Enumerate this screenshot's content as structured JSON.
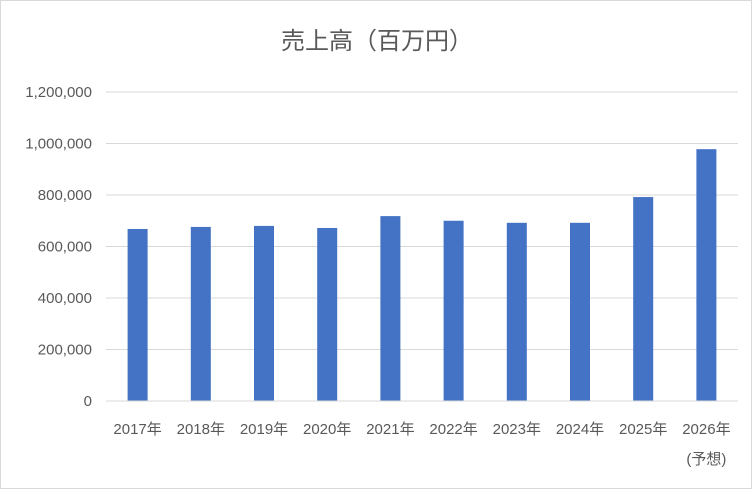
{
  "chart_data": {
    "type": "bar",
    "title": "売上高（百万円）",
    "categories": [
      "2017年",
      "2018年",
      "2019年",
      "2020年",
      "2021年",
      "2022年",
      "2023年",
      "2024年",
      "2025年",
      "2026年"
    ],
    "category_sublabels": [
      "",
      "",
      "",
      "",
      "",
      "",
      "",
      "",
      "",
      "(予想)"
    ],
    "values": [
      668000,
      676000,
      680000,
      672000,
      718000,
      700000,
      692000,
      692000,
      792000,
      978000
    ],
    "ylim": [
      0,
      1200000
    ],
    "yticks": [
      0,
      200000,
      400000,
      600000,
      800000,
      1000000,
      1200000
    ],
    "ytick_labels": [
      "0",
      "200,000",
      "400,000",
      "600,000",
      "800,000",
      "1,000,000",
      "1,200,000"
    ],
    "grid": true,
    "legend": "none",
    "bar_color": "#4472c4"
  }
}
